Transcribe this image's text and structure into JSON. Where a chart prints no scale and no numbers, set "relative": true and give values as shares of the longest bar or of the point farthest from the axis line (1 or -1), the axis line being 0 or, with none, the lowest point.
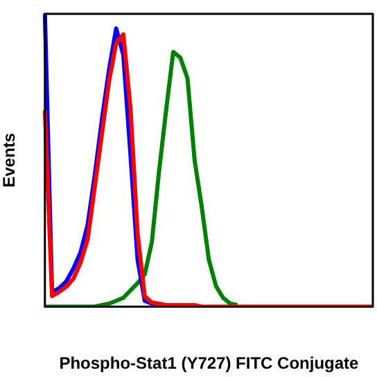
{
  "chart_data": {
    "type": "line",
    "relative": true,
    "xlabel": "Phospho-Stat1 (Y727) FITC Conjugate",
    "ylabel": "Events",
    "legend": false,
    "grid": false,
    "marker": "none",
    "line_style": "solid",
    "categories": [
      null,
      null,
      null,
      null,
      null,
      null,
      null,
      null,
      null,
      null,
      null,
      null,
      null,
      null,
      null,
      null,
      null,
      null,
      null,
      null,
      null,
      null,
      null,
      null,
      null,
      null,
      null,
      null,
      null,
      null,
      null,
      null,
      null,
      null,
      null,
      null,
      null,
      null,
      null,
      null,
      null,
      null,
      null,
      null,
      null,
      null,
      null
    ],
    "series": [
      {
        "color": "#ff0000",
        "values": [
          0.67,
          0.036,
          0.05,
          0.068,
          0.095,
          0.15,
          0.23,
          0.41,
          0.59,
          0.77,
          0.9,
          0.93,
          0.68,
          0.25,
          0.036,
          0.014,
          0.01,
          0.005,
          0.005,
          0.005,
          0.005,
          0.005,
          0,
          0,
          0,
          0,
          0,
          0,
          0,
          0,
          0,
          0,
          0,
          0,
          0,
          0,
          0,
          0,
          0,
          0,
          0,
          0,
          0,
          0,
          0,
          0,
          0
        ]
      },
      {
        "color": "#0000ff",
        "values": [
          1,
          0.05,
          0.063,
          0.086,
          0.13,
          0.185,
          0.28,
          0.45,
          0.64,
          0.81,
          0.95,
          0.86,
          0.52,
          0.16,
          0.02,
          0.01,
          0.005,
          null,
          null,
          null,
          0,
          0,
          null,
          null,
          null,
          null,
          null,
          null,
          null,
          null,
          null,
          null,
          null,
          null,
          null,
          null,
          null,
          null,
          null,
          null,
          null,
          null,
          null,
          null,
          null,
          null,
          null
        ]
      },
      {
        "color": "#008000",
        "values": [
          0,
          0,
          0,
          0,
          0,
          0,
          0,
          0,
          0.005,
          0.01,
          0.02,
          0.03,
          0.055,
          0.08,
          0.11,
          0.22,
          0.46,
          0.67,
          0.87,
          0.85,
          0.78,
          0.5,
          0.34,
          0.16,
          0.07,
          0.03,
          0.01,
          0.005,
          null,
          null,
          null,
          null,
          null,
          null,
          null,
          null,
          null,
          null,
          null,
          null,
          null,
          null,
          null,
          null,
          null,
          null,
          null
        ]
      }
    ]
  }
}
